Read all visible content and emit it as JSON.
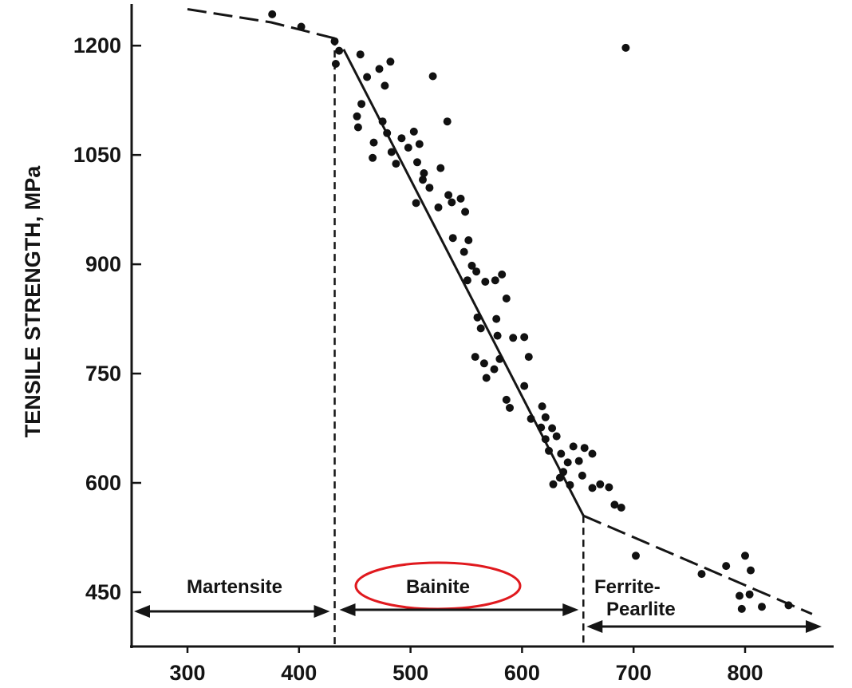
{
  "chart_data": {
    "type": "scatter",
    "title": "",
    "xlabel": "",
    "ylabel": "TENSILE STRENGTH, MPa",
    "xlim": [
      220,
      870
    ],
    "ylim": [
      370,
      1270
    ],
    "x_ticks": [
      300,
      400,
      500,
      600,
      700,
      800
    ],
    "y_ticks": [
      450,
      600,
      750,
      900,
      1050,
      1200
    ],
    "grid": false,
    "legend": "none",
    "regions": [
      {
        "label": "Martensite",
        "from": 220,
        "to": 432
      },
      {
        "label": "Bainite",
        "from": 432,
        "to": 655,
        "highlighted": true
      },
      {
        "label_line1": "Ferrite-",
        "label_line2": "Pearlite",
        "from": 655,
        "to": 870
      }
    ],
    "region_boundaries": [
      432,
      655
    ],
    "highlight_color": "#e0191e",
    "trend_solid": [
      [
        440,
        1195
      ],
      [
        655,
        555
      ]
    ],
    "trend_dashed_upper": [
      [
        300,
        1250
      ],
      [
        375,
        1232
      ],
      [
        432,
        1210
      ]
    ],
    "trend_dashed_lower": [
      [
        655,
        555
      ],
      [
        860,
        420
      ]
    ],
    "points": [
      [
        376,
        1243
      ],
      [
        402,
        1226
      ],
      [
        432,
        1206
      ],
      [
        436,
        1193
      ],
      [
        433,
        1175
      ],
      [
        455,
        1188
      ],
      [
        461,
        1157
      ],
      [
        472,
        1168
      ],
      [
        477,
        1145
      ],
      [
        482,
        1178
      ],
      [
        456,
        1120
      ],
      [
        452,
        1103
      ],
      [
        453,
        1088
      ],
      [
        467,
        1067
      ],
      [
        466,
        1046
      ],
      [
        475,
        1096
      ],
      [
        479,
        1080
      ],
      [
        483,
        1054
      ],
      [
        487,
        1038
      ],
      [
        492,
        1073
      ],
      [
        498,
        1060
      ],
      [
        503,
        1082
      ],
      [
        508,
        1065
      ],
      [
        506,
        1040
      ],
      [
        512,
        1025
      ],
      [
        520,
        1158
      ],
      [
        517,
        1005
      ],
      [
        527,
        1032
      ],
      [
        533,
        1096
      ],
      [
        534,
        995
      ],
      [
        525,
        978
      ],
      [
        511,
        1016
      ],
      [
        505,
        984
      ],
      [
        537,
        985
      ],
      [
        545,
        990
      ],
      [
        549,
        972
      ],
      [
        538,
        936
      ],
      [
        552,
        933
      ],
      [
        548,
        917
      ],
      [
        555,
        898
      ],
      [
        559,
        890
      ],
      [
        551,
        878
      ],
      [
        567,
        876
      ],
      [
        576,
        878
      ],
      [
        582,
        886
      ],
      [
        586,
        853
      ],
      [
        560,
        827
      ],
      [
        563,
        812
      ],
      [
        577,
        825
      ],
      [
        578,
        802
      ],
      [
        592,
        799
      ],
      [
        602,
        800
      ],
      [
        606,
        773
      ],
      [
        558,
        773
      ],
      [
        566,
        764
      ],
      [
        568,
        744
      ],
      [
        575,
        756
      ],
      [
        580,
        770
      ],
      [
        586,
        714
      ],
      [
        589,
        703
      ],
      [
        602,
        733
      ],
      [
        608,
        688
      ],
      [
        618,
        705
      ],
      [
        621,
        690
      ],
      [
        617,
        676
      ],
      [
        627,
        675
      ],
      [
        621,
        660
      ],
      [
        624,
        644
      ],
      [
        631,
        664
      ],
      [
        635,
        640
      ],
      [
        637,
        615
      ],
      [
        641,
        628
      ],
      [
        646,
        650
      ],
      [
        651,
        630
      ],
      [
        628,
        598
      ],
      [
        634,
        607
      ],
      [
        643,
        597
      ],
      [
        654,
        610
      ],
      [
        663,
        593
      ],
      [
        656,
        648
      ],
      [
        663,
        640
      ],
      [
        670,
        598
      ],
      [
        678,
        594
      ],
      [
        683,
        570
      ],
      [
        689,
        566
      ],
      [
        702,
        500
      ],
      [
        761,
        475
      ],
      [
        783,
        486
      ],
      [
        800,
        500
      ],
      [
        805,
        480
      ],
      [
        795,
        445
      ],
      [
        797,
        427
      ],
      [
        804,
        447
      ],
      [
        815,
        430
      ],
      [
        839,
        432
      ],
      [
        693,
        1197
      ]
    ]
  }
}
